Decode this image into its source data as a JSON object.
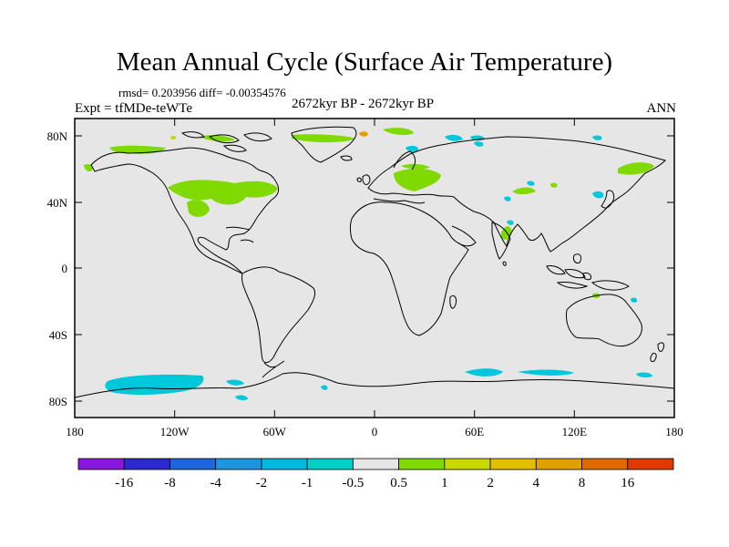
{
  "title": "Mean Annual Cycle (Surface Air Temperature)",
  "stats": "rmsd= 0.203956 diff= -0.00354576",
  "experiment": "Expt = tfMDe-teWTe",
  "period": "2672kyr BP - 2672kyr BP",
  "season": "ANN",
  "colors": {
    "ocean_land_neutral": "#e6e6e6",
    "warm_1": "#80d900",
    "warm_2": "#c8d900",
    "warm_4": "#e0a000",
    "cool_1": "#00c8dc"
  },
  "axes": {
    "lat_labels": [
      "80N",
      "40N",
      "0",
      "40S",
      "80S"
    ],
    "lon_labels": [
      "180",
      "120W",
      "60W",
      "0",
      "60E",
      "120E",
      "180"
    ]
  },
  "colorbar": {
    "colors": [
      "#8a17e0",
      "#2a2acf",
      "#1d65dc",
      "#1c96e0",
      "#00b8e0",
      "#00d0c8",
      "#e6e6e6",
      "#80d900",
      "#c8d900",
      "#e0c000",
      "#e0a000",
      "#e06a00",
      "#e03a00"
    ],
    "labels": [
      "-16",
      "-8",
      "-4",
      "-2",
      "-1",
      "-0.5",
      "0.5",
      "1",
      "2",
      "4",
      "8",
      "16"
    ]
  }
}
